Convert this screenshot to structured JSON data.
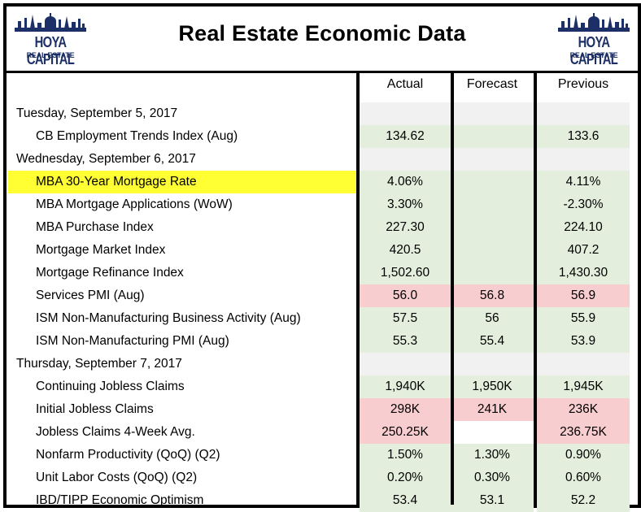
{
  "header": {
    "title": "Real Estate Economic Data",
    "logo": {
      "brand": "HOYA CAPITAL",
      "sub": "REAL ESTATE",
      "color": "#1c2f66"
    }
  },
  "table": {
    "columns": [
      "Actual",
      "Forecast",
      "Previous"
    ],
    "rows": [
      {
        "type": "date",
        "label": "Tuesday, September 5, 2017",
        "values": [
          "",
          "",
          ""
        ],
        "fills": [
          "e",
          "e",
          "e"
        ]
      },
      {
        "type": "item",
        "label": "CB Employment Trends Index (Aug)",
        "values": [
          "134.62",
          "",
          "133.6"
        ],
        "fills": [
          "g",
          "g",
          "g"
        ]
      },
      {
        "type": "date",
        "label": "Wednesday, September 6, 2017",
        "values": [
          "",
          "",
          ""
        ],
        "fills": [
          "e",
          "e",
          "e"
        ]
      },
      {
        "type": "item",
        "label": "MBA 30-Year Mortgage Rate",
        "highlight": true,
        "values": [
          "4.06%",
          "",
          "4.11%"
        ],
        "fills": [
          "g",
          "g",
          "g"
        ]
      },
      {
        "type": "item",
        "label": "MBA Mortgage Applications (WoW)",
        "values": [
          "3.30%",
          "",
          "-2.30%"
        ],
        "fills": [
          "g",
          "g",
          "g"
        ]
      },
      {
        "type": "item",
        "label": "MBA Purchase Index",
        "values": [
          "227.30",
          "",
          "224.10"
        ],
        "fills": [
          "g",
          "g",
          "g"
        ]
      },
      {
        "type": "item",
        "label": "Mortgage Market Index",
        "values": [
          "420.5",
          "",
          "407.2"
        ],
        "fills": [
          "g",
          "g",
          "g"
        ]
      },
      {
        "type": "item",
        "label": "Mortgage Refinance Index",
        "values": [
          "1,502.60",
          "",
          "1,430.30"
        ],
        "fills": [
          "g",
          "g",
          "g"
        ]
      },
      {
        "type": "item",
        "label": "Services PMI (Aug)",
        "values": [
          "56.0",
          "56.8",
          "56.9"
        ],
        "fills": [
          "r",
          "r",
          "r"
        ]
      },
      {
        "type": "item",
        "label": "ISM Non-Manufacturing Business Activity (Aug)",
        "values": [
          "57.5",
          "56",
          "55.9"
        ],
        "fills": [
          "g",
          "g",
          "g"
        ]
      },
      {
        "type": "item",
        "label": "ISM Non-Manufacturing PMI (Aug)",
        "values": [
          "55.3",
          "55.4",
          "53.9"
        ],
        "fills": [
          "g",
          "g",
          "g"
        ]
      },
      {
        "type": "date",
        "label": "Thursday, September 7, 2017",
        "values": [
          "",
          "",
          ""
        ],
        "fills": [
          "e",
          "e",
          "e"
        ]
      },
      {
        "type": "item",
        "label": "Continuing Jobless Claims",
        "values": [
          "1,940K",
          "1,950K",
          "1,945K"
        ],
        "fills": [
          "g",
          "g",
          "g"
        ]
      },
      {
        "type": "item",
        "label": "Initial Jobless Claims",
        "values": [
          "298K",
          "241K",
          "236K"
        ],
        "fills": [
          "r",
          "r",
          "r"
        ]
      },
      {
        "type": "item",
        "label": "Jobless Claims 4-Week Avg.",
        "values": [
          "250.25K",
          "",
          "236.75K"
        ],
        "fills": [
          "r",
          "w",
          "r"
        ]
      },
      {
        "type": "item",
        "label": "Nonfarm Productivity (QoQ) (Q2)",
        "values": [
          "1.50%",
          "1.30%",
          "0.90%"
        ],
        "fills": [
          "g",
          "g",
          "g"
        ]
      },
      {
        "type": "item",
        "label": "Unit Labor Costs (QoQ) (Q2)",
        "values": [
          "0.20%",
          "0.30%",
          "0.60%"
        ],
        "fills": [
          "g",
          "g",
          "g"
        ]
      },
      {
        "type": "item",
        "label": "IBD/TIPP Economic Optimism",
        "values": [
          "53.4",
          "53.1",
          "52.2"
        ],
        "fills": [
          "g",
          "g",
          "g"
        ]
      }
    ]
  },
  "colors": {
    "positive": "#e3efdc",
    "negative": "#f8cdcf",
    "date_row": "#f1f1f1",
    "highlight": "#ffff33"
  }
}
